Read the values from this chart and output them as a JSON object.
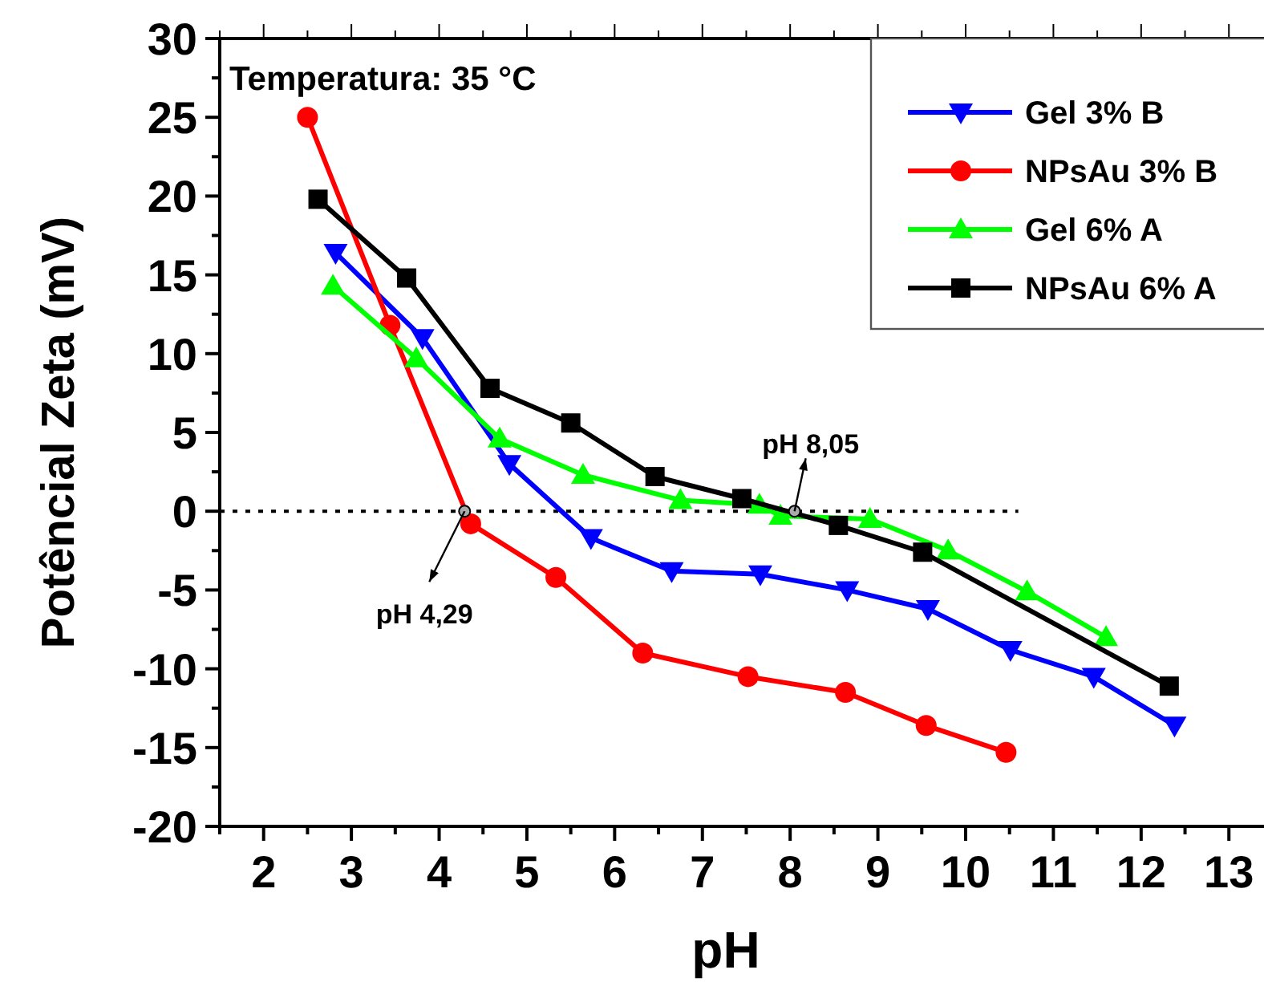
{
  "chart_data": {
    "type": "line",
    "xlabel": "pH",
    "ylabel": "Potêncial Zeta (mV)",
    "xlim": [
      1.5,
      13.4
    ],
    "ylim": [
      -20,
      30
    ],
    "xticks": [
      {
        "value": 1.5,
        "label": null
      },
      2,
      {
        "value": 2.5,
        "label": null
      },
      3,
      {
        "value": 3.5,
        "label": null
      },
      4,
      {
        "value": 4.5,
        "label": null
      },
      5,
      {
        "value": 5.5,
        "label": null
      },
      6,
      {
        "value": 6.5,
        "label": null
      },
      7,
      {
        "value": 7.5,
        "label": null
      },
      8,
      {
        "value": 8.5,
        "label": null
      },
      9,
      {
        "value": 9.5,
        "label": null
      },
      10,
      {
        "value": 10.5,
        "label": null
      },
      11,
      {
        "value": 11.5,
        "label": null
      },
      12,
      {
        "value": 12.5,
        "label": null
      },
      13
    ],
    "yticks": [
      -20,
      {
        "value": -17.5,
        "label": null
      },
      -15,
      {
        "value": -12.5,
        "label": null
      },
      -10,
      {
        "value": -7.5,
        "label": null
      },
      -5,
      {
        "value": -2.5,
        "label": null
      },
      0,
      {
        "value": 2.5,
        "label": null
      },
      5,
      {
        "value": 7.5,
        "label": null
      },
      10,
      {
        "value": 12.5,
        "label": null
      },
      15,
      {
        "value": 17.5,
        "label": null
      },
      20,
      {
        "value": 22.5,
        "label": null
      },
      25,
      {
        "value": 27.5,
        "label": null
      },
      30
    ],
    "grid": false,
    "legend": "top right",
    "line_style": "solid",
    "series": [
      {
        "name": "Gel 3% B",
        "color": "#0000ff",
        "marker": "triangle-down",
        "x": [
          2.82,
          3.81,
          4.8,
          5.73,
          6.65,
          7.66,
          8.65,
          9.57,
          10.51,
          11.46,
          12.38
        ],
        "values": [
          16.4,
          11,
          3,
          -1.7,
          -3.8,
          -4,
          -5,
          -6.2,
          -8.8,
          -10.5,
          -13.6
        ]
      },
      {
        "name": "NPsAu 3% B",
        "color": "#ff0000",
        "marker": "circle",
        "x": [
          2.5,
          3.44,
          4.36,
          5.33,
          6.32,
          7.52,
          8.63,
          9.55,
          10.46
        ],
        "values": [
          25,
          11.8,
          -0.8,
          -4.2,
          -9,
          -10.5,
          -11.5,
          -13.6,
          -15.3
        ]
      },
      {
        "name": "Gel 6% A",
        "color": "#00ff00",
        "marker": "triangle",
        "x": [
          2.79,
          3.74,
          4.69,
          5.64,
          6.75,
          7.65,
          7.89,
          8.91,
          9.8,
          10.7,
          11.6
        ],
        "values": [
          14.3,
          9.7,
          4.6,
          2.3,
          0.7,
          0.4,
          -0.3,
          -0.5,
          -2.5,
          -5.1,
          -8
        ]
      },
      {
        "name": "NPsAu 6% A",
        "color": "#000000",
        "marker": "square",
        "x": [
          2.62,
          3.63,
          4.58,
          5.5,
          6.46,
          7.45,
          8.55,
          9.51,
          12.32
        ],
        "values": [
          19.8,
          14.8,
          7.8,
          5.6,
          2.2,
          0.8,
          -0.9,
          -2.6,
          -11.1
        ]
      }
    ],
    "ref_lines": [
      {
        "axis": "y",
        "value": 0,
        "line_style": "dotted",
        "color": "#000000"
      }
    ],
    "annotations": [
      "Temperatura: 35 °C",
      {
        "text": "pH 4,29",
        "x": 4.29,
        "y": 0
      },
      {
        "text": "pH 8,05",
        "x": 8.05,
        "y": 0
      }
    ]
  }
}
